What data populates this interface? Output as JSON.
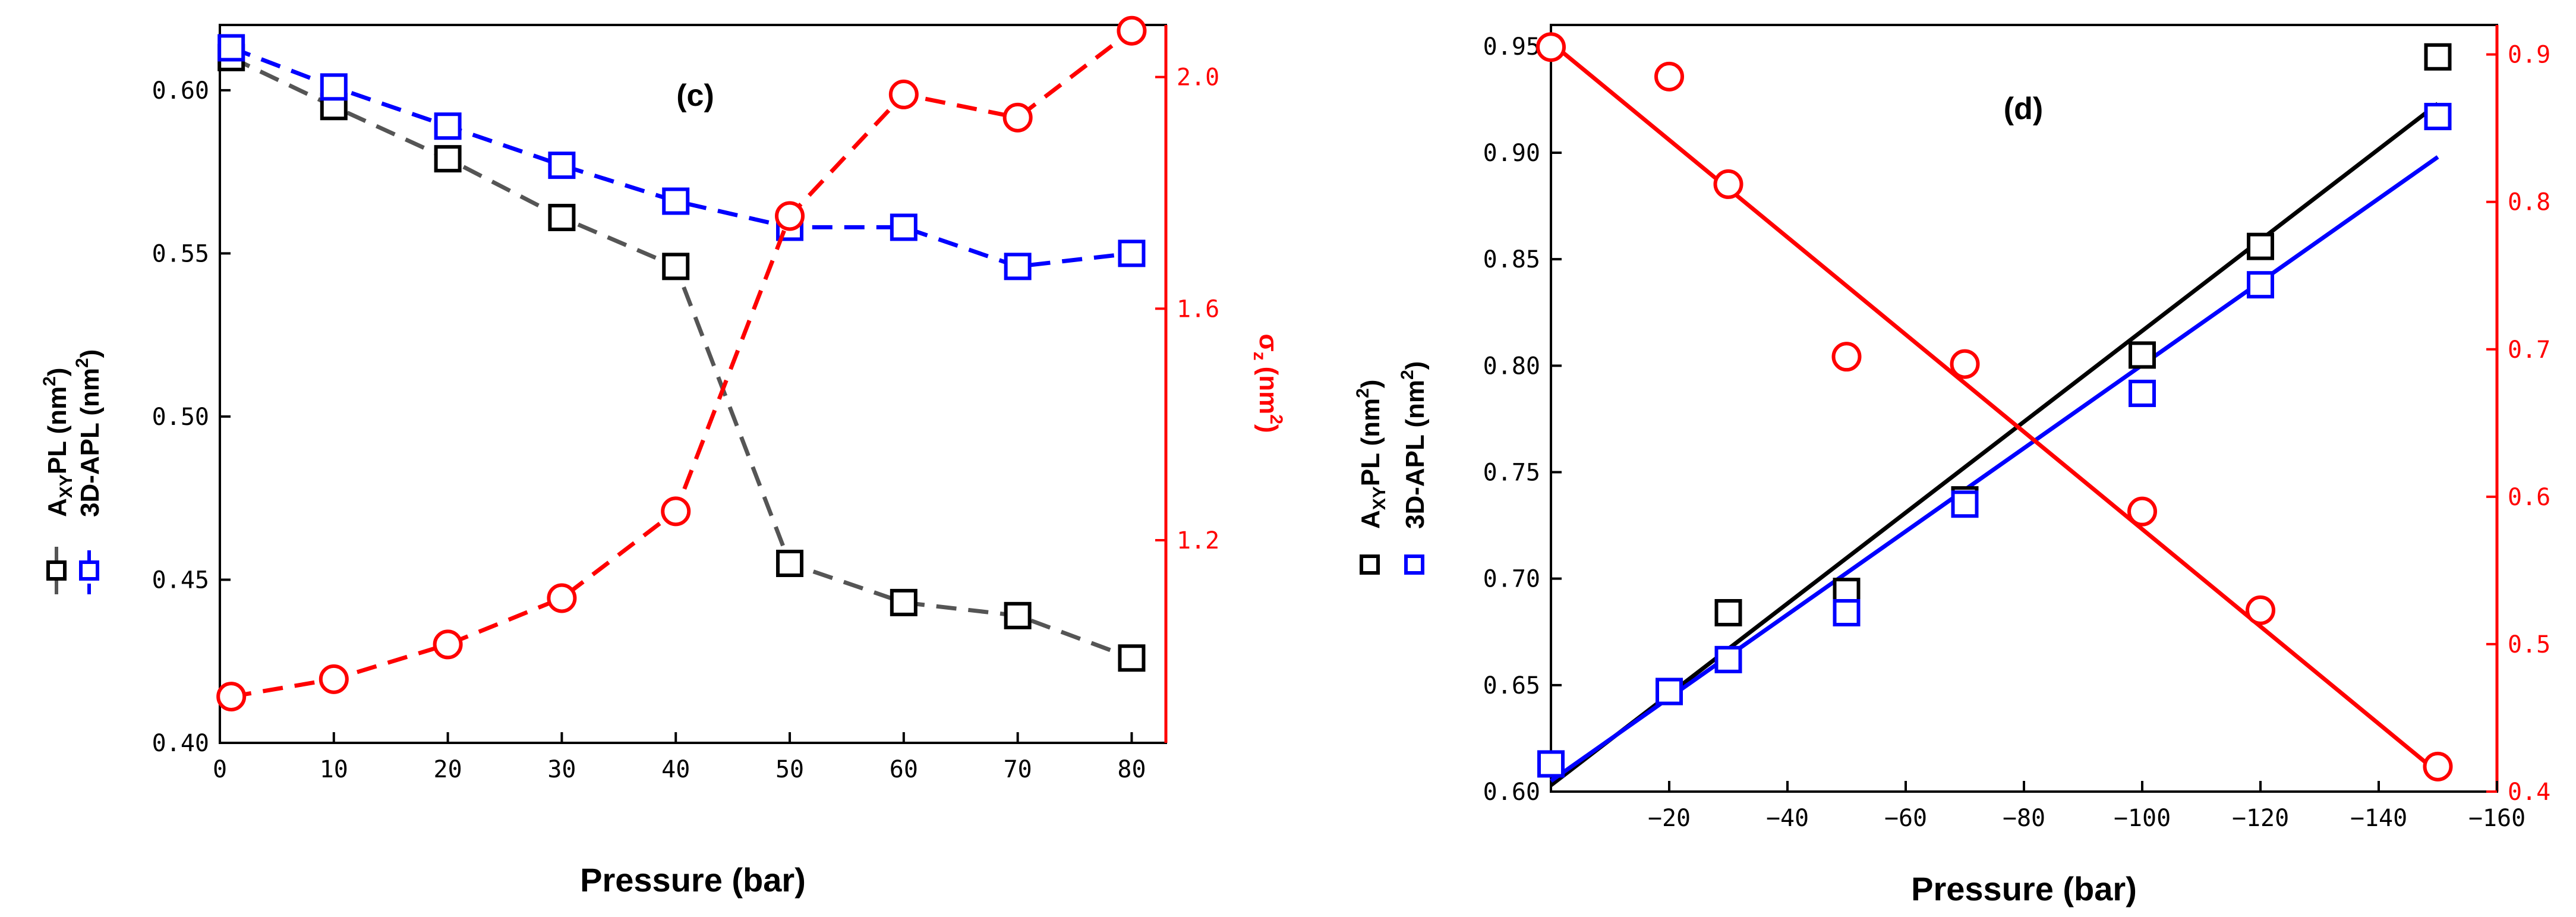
{
  "colors": {
    "axyp": "#000000",
    "apl3d": "#0000ff",
    "sigma": "#ff0000",
    "sigma_axis": "#ff0000",
    "dashed_axyp": "#555555"
  },
  "chart_data": [
    {
      "type": "line",
      "panel_label": "(c)",
      "xlabel": "Pressure (bar)",
      "xlim": [
        0,
        83
      ],
      "xticks": [
        0,
        10,
        20,
        30,
        40,
        50,
        60,
        70,
        80
      ],
      "x": [
        1,
        10,
        20,
        30,
        40,
        50,
        60,
        70,
        80
      ],
      "ylim": [
        0.4,
        0.62
      ],
      "yticks": [
        0.4,
        0.45,
        0.5,
        0.55,
        0.6
      ],
      "y2lim": [
        0.85,
        2.09
      ],
      "y2ticks": [
        1.2,
        1.6,
        2.0
      ],
      "y2label": "σ",
      "y2label_sub": "z",
      "y2label_units": "(nm",
      "y2label_sup": "2",
      "y2label_close": ")",
      "legend": [
        {
          "label": "A",
          "sub": "XY",
          "rest": "PL (nm",
          "sup": "2",
          "close": ")"
        },
        {
          "label": "3D-APL (nm",
          "sup": "2",
          "close": ")"
        }
      ],
      "series": [
        {
          "name": "AXYPL",
          "axis": "left",
          "style": "dashed",
          "marker": "square",
          "values": [
            0.61,
            0.595,
            0.579,
            0.561,
            0.546,
            0.455,
            0.443,
            0.439,
            0.426
          ]
        },
        {
          "name": "3D-APL",
          "axis": "left",
          "style": "dashed",
          "marker": "square",
          "values": [
            0.613,
            0.601,
            0.589,
            0.577,
            0.566,
            0.558,
            0.558,
            0.546,
            0.55
          ]
        },
        {
          "name": "σz",
          "axis": "right",
          "style": "dashed",
          "marker": "circle",
          "values": [
            0.93,
            0.96,
            1.02,
            1.1,
            1.25,
            1.76,
            1.97,
            1.93,
            2.08
          ]
        }
      ]
    },
    {
      "type": "scatter",
      "panel_label": "(d)",
      "xlabel": "Pressure (bar)",
      "xlim": [
        0,
        -160
      ],
      "xticks": [
        -20,
        -40,
        -60,
        -80,
        -100,
        -120,
        -140,
        -160
      ],
      "ylim": [
        0.6,
        0.96
      ],
      "yticks": [
        0.6,
        0.65,
        0.7,
        0.75,
        0.8,
        0.85,
        0.9,
        0.95
      ],
      "y2lim": [
        0.4,
        0.92
      ],
      "y2ticks": [
        0.4,
        0.5,
        0.6,
        0.7,
        0.8,
        0.9
      ],
      "legend": [
        {
          "label": "A",
          "sub": "XY",
          "rest": "PL (nm",
          "sup": "2",
          "close": ")"
        },
        {
          "label": "3D-APL (nm",
          "sup": "2",
          "close": ")"
        }
      ],
      "series": [
        {
          "name": "AXYPL",
          "axis": "left",
          "marker": "square",
          "x": [
            -20,
            -30,
            -50,
            -70,
            -100,
            -120,
            -150
          ],
          "values": [
            0.647,
            0.684,
            0.694,
            0.737,
            0.805,
            0.856,
            0.945
          ],
          "fit": {
            "x": [
              0,
              -150
            ],
            "y": [
              0.603,
              0.923
            ]
          }
        },
        {
          "name": "3D-APL",
          "axis": "left",
          "marker": "square",
          "x": [
            0,
            -20,
            -30,
            -50,
            -70,
            -100,
            -120,
            -150
          ],
          "values": [
            0.613,
            0.647,
            0.662,
            0.684,
            0.735,
            0.787,
            0.838,
            0.917
          ],
          "fit": {
            "x": [
              0,
              -150
            ],
            "y": [
              0.605,
              0.898
            ]
          }
        },
        {
          "name": "σz",
          "axis": "right",
          "marker": "circle",
          "x": [
            0,
            -20,
            -30,
            -50,
            -70,
            -100,
            -120,
            -150
          ],
          "values": [
            0.905,
            0.885,
            0.812,
            0.695,
            0.69,
            0.59,
            0.523,
            0.417
          ],
          "fit": {
            "x": [
              0,
              -150
            ],
            "y": [
              0.908,
              0.413
            ]
          }
        }
      ]
    }
  ]
}
